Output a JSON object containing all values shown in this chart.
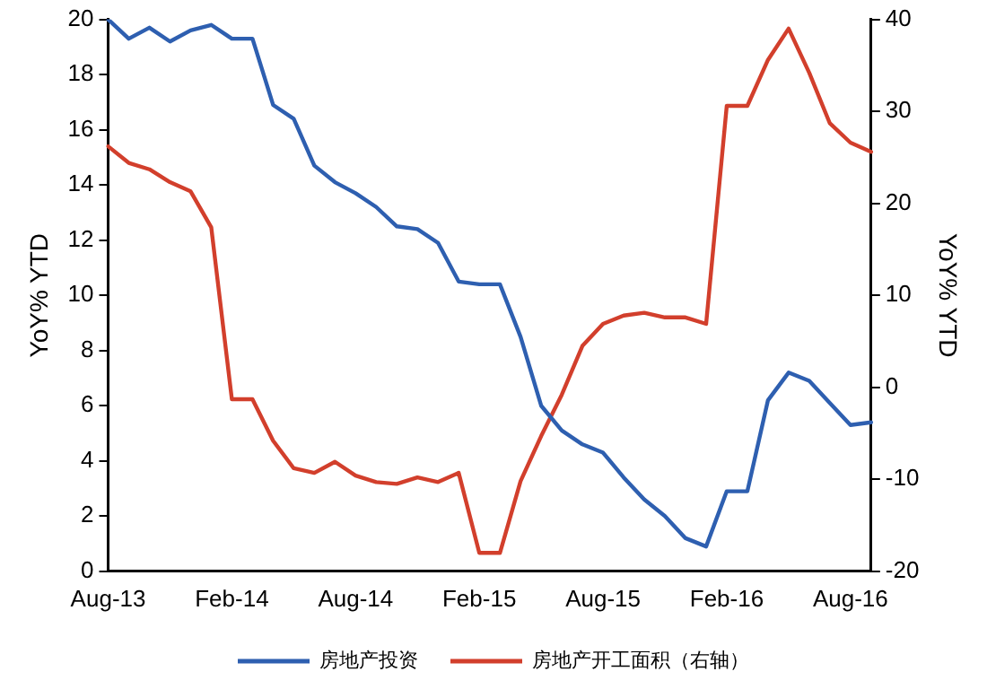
{
  "chart_data": {
    "type": "line",
    "ylabel": "YoY% YTD",
    "y2label": "YoY% YTD",
    "categories": [
      "Aug-13",
      null,
      null,
      null,
      null,
      null,
      "Feb-14",
      null,
      null,
      null,
      null,
      null,
      "Aug-14",
      null,
      null,
      null,
      null,
      null,
      "Feb-15",
      null,
      null,
      null,
      null,
      null,
      "Aug-15",
      null,
      null,
      null,
      null,
      null,
      "Feb-16",
      null,
      null,
      null,
      null,
      null,
      "Aug-16",
      null
    ],
    "series": [
      {
        "name": "房地产投资",
        "color": "#2e5fb0",
        "values": [
          20.0,
          19.3,
          19.7,
          19.2,
          19.6,
          19.8,
          19.3,
          19.3,
          16.9,
          16.4,
          14.7,
          14.1,
          13.7,
          13.2,
          12.5,
          12.4,
          11.9,
          10.5,
          10.4,
          10.4,
          8.5,
          6.0,
          5.1,
          4.6,
          4.3,
          3.4,
          2.6,
          2.0,
          1.2,
          0.9,
          2.9,
          2.9,
          6.2,
          7.2,
          6.9,
          6.1,
          5.3,
          5.4
        ]
      },
      {
        "name": "房地产开工面积（右轴）",
        "color": "#d23f2c",
        "axis": "y2",
        "values": [
          26.2,
          24.4,
          23.7,
          22.3,
          21.3,
          17.4,
          -1.3,
          -1.3,
          -5.8,
          -8.8,
          -9.3,
          -8.1,
          -9.6,
          -10.3,
          -10.5,
          -9.8,
          -10.3,
          -9.3,
          -18.0,
          -18.0,
          -10.2,
          -5.3,
          -0.8,
          4.5,
          6.9,
          7.8,
          8.1,
          7.6,
          7.6,
          6.9,
          30.6,
          30.6,
          35.6,
          39.0,
          34.2,
          28.7,
          26.6,
          25.6
        ]
      }
    ],
    "ylim": [
      0,
      20
    ],
    "yticks": [
      0,
      2,
      4,
      6,
      8,
      10,
      12,
      14,
      16,
      18,
      20
    ],
    "y2lim": [
      -20,
      40
    ],
    "y2ticks": [
      -20,
      -10,
      0,
      10,
      20,
      30,
      40
    ],
    "grid": false,
    "legend": "bottom",
    "marker": "none",
    "line_style": "solid"
  }
}
